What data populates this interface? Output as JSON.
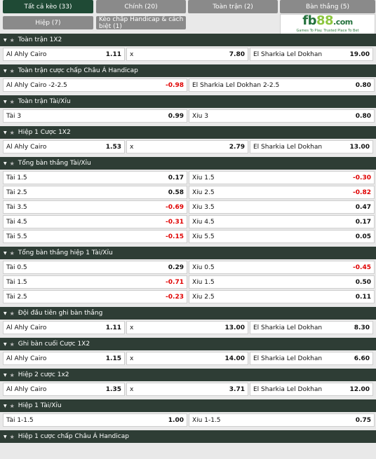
{
  "tabs": [
    {
      "label": "Tất cả kèo (33)"
    },
    {
      "label": "Chính (20)"
    },
    {
      "label": "Toàn trận (2)"
    },
    {
      "label": "Bàn thắng (5)"
    },
    {
      "label": "Hiệp (7)"
    },
    {
      "label": "Kèo chấp Handicap & cách biệt (1)"
    }
  ],
  "banner": {
    "logo_text": "fb",
    "logo_num": "88",
    "logo_domain": ".com",
    "slogan": "Games To Play. Trusted Place To Bet"
  },
  "colors": {
    "accent": "#1f4a35",
    "header": "#2e3d35",
    "negative": "#e00000",
    "tab": "#8a8a8a"
  },
  "sections": [
    {
      "title": "Toàn trận 1X2",
      "rows": [
        [
          {
            "name": "Al Ahly Cairo",
            "odd": "1.11"
          },
          {
            "name": "x",
            "odd": "7.80"
          },
          {
            "name": "El Sharkia Lel Dokhan",
            "odd": "19.00"
          }
        ]
      ]
    },
    {
      "title": "Toàn trận cược chấp Châu Á Handicap",
      "rows": [
        [
          {
            "name": "Al Ahly Cairo -2-2.5",
            "odd": "-0.98"
          },
          {
            "name": "El Sharkia Lel Dokhan 2-2.5",
            "odd": "0.80"
          }
        ]
      ]
    },
    {
      "title": "Toàn trận Tài/Xỉu",
      "rows": [
        [
          {
            "name": "Tài 3",
            "odd": "0.99"
          },
          {
            "name": "Xỉu 3",
            "odd": "0.80"
          }
        ]
      ]
    },
    {
      "title": "Hiệp 1 Cược 1X2",
      "rows": [
        [
          {
            "name": "Al Ahly Cairo",
            "odd": "1.53"
          },
          {
            "name": "x",
            "odd": "2.79"
          },
          {
            "name": "El Sharkia Lel Dokhan",
            "odd": "13.00"
          }
        ]
      ]
    },
    {
      "title": "Tổng bàn thắng Tài/Xỉu",
      "rows": [
        [
          {
            "name": "Tài 1.5",
            "odd": "0.17"
          },
          {
            "name": "Xỉu 1.5",
            "odd": "-0.30"
          }
        ],
        [
          {
            "name": "Tài 2.5",
            "odd": "0.58"
          },
          {
            "name": "Xỉu 2.5",
            "odd": "-0.82"
          }
        ],
        [
          {
            "name": "Tài 3.5",
            "odd": "-0.69"
          },
          {
            "name": "Xỉu 3.5",
            "odd": "0.47"
          }
        ],
        [
          {
            "name": "Tài 4.5",
            "odd": "-0.31"
          },
          {
            "name": "Xỉu 4.5",
            "odd": "0.17"
          }
        ],
        [
          {
            "name": "Tài 5.5",
            "odd": "-0.15"
          },
          {
            "name": "Xỉu 5.5",
            "odd": "0.05"
          }
        ]
      ]
    },
    {
      "title": "Tổng bàn thắng hiệp 1 Tài/Xỉu",
      "rows": [
        [
          {
            "name": "Tài 0.5",
            "odd": "0.29"
          },
          {
            "name": "Xỉu 0.5",
            "odd": "-0.45"
          }
        ],
        [
          {
            "name": "Tài 1.5",
            "odd": "-0.71"
          },
          {
            "name": "Xỉu 1.5",
            "odd": "0.50"
          }
        ],
        [
          {
            "name": "Tài 2.5",
            "odd": "-0.23"
          },
          {
            "name": "Xỉu 2.5",
            "odd": "0.11"
          }
        ]
      ]
    },
    {
      "title": "Đội đầu tiên ghi bàn thắng",
      "rows": [
        [
          {
            "name": "Al Ahly Cairo",
            "odd": "1.11"
          },
          {
            "name": "x",
            "odd": "13.00"
          },
          {
            "name": "El Sharkia Lel Dokhan",
            "odd": "8.30"
          }
        ]
      ]
    },
    {
      "title": "Ghi bàn cuối Cược 1X2",
      "rows": [
        [
          {
            "name": "Al Ahly Cairo",
            "odd": "1.15"
          },
          {
            "name": "x",
            "odd": "14.00"
          },
          {
            "name": "El Sharkia Lel Dokhan",
            "odd": "6.60"
          }
        ]
      ]
    },
    {
      "title": "Hiệp 2 cược 1x2",
      "rows": [
        [
          {
            "name": "Al Ahly Cairo",
            "odd": "1.35"
          },
          {
            "name": "x",
            "odd": "3.71"
          },
          {
            "name": "El Sharkia Lel Dokhan",
            "odd": "12.00"
          }
        ]
      ]
    },
    {
      "title": "Hiệp 1 Tài/Xỉu",
      "rows": [
        [
          {
            "name": "Tài 1-1.5",
            "odd": "1.00"
          },
          {
            "name": "Xỉu 1-1.5",
            "odd": "0.75"
          }
        ]
      ]
    },
    {
      "title": "Hiệp 1 cược chấp Châu Á Handicap",
      "rows": []
    }
  ]
}
